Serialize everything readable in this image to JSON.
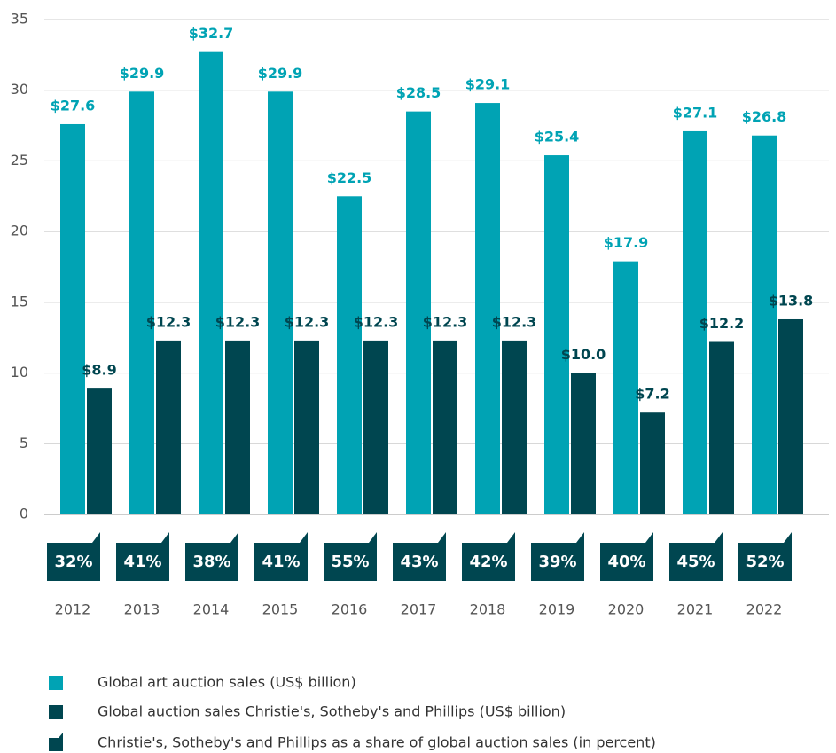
{
  "chart_data": {
    "type": "bar",
    "categories": [
      "2012",
      "2013",
      "2014",
      "2015",
      "2016",
      "2017",
      "2018",
      "2019",
      "2020",
      "2021",
      "2022"
    ],
    "series": [
      {
        "name": "Global art auction sales (US$ billion)",
        "color": "#00a3b4",
        "values": [
          27.6,
          29.9,
          32.7,
          29.9,
          22.5,
          28.5,
          29.1,
          25.4,
          17.9,
          27.1,
          26.8
        ],
        "value_labels": [
          "$27.6",
          "$29.9",
          "$32.7",
          "$29.9",
          "$22.5",
          "$28.5",
          "$29.1",
          "$25.4",
          "$17.9",
          "$27.1",
          "$26.8"
        ]
      },
      {
        "name": "Global auction sales Christie's, Sotheby's and Phillips (US$ billion)",
        "color": "#004650",
        "values": [
          8.9,
          12.3,
          12.3,
          12.3,
          12.3,
          12.3,
          12.3,
          10.0,
          7.2,
          12.2,
          13.8
        ],
        "value_labels": [
          "$8.9",
          "$12.3",
          "$12.3",
          "$12.3",
          "$12.3",
          "$12.3",
          "$12.3",
          "$10.0",
          "$7.2",
          "$12.2",
          "$13.8"
        ]
      }
    ],
    "share": {
      "name": "Christie's, Sotheby's and Phillips as a share of global auction sales (in percent)",
      "color": "#004650",
      "values": [
        32,
        41,
        38,
        41,
        55,
        43,
        42,
        39,
        40,
        45,
        52
      ],
      "value_labels": [
        "32%",
        "41%",
        "38%",
        "41%",
        "55%",
        "43%",
        "42%",
        "39%",
        "40%",
        "45%",
        "52%"
      ]
    },
    "ylim": [
      0,
      35
    ],
    "yticks": [
      0,
      5,
      10,
      15,
      20,
      25,
      30,
      35
    ],
    "grid": true
  }
}
